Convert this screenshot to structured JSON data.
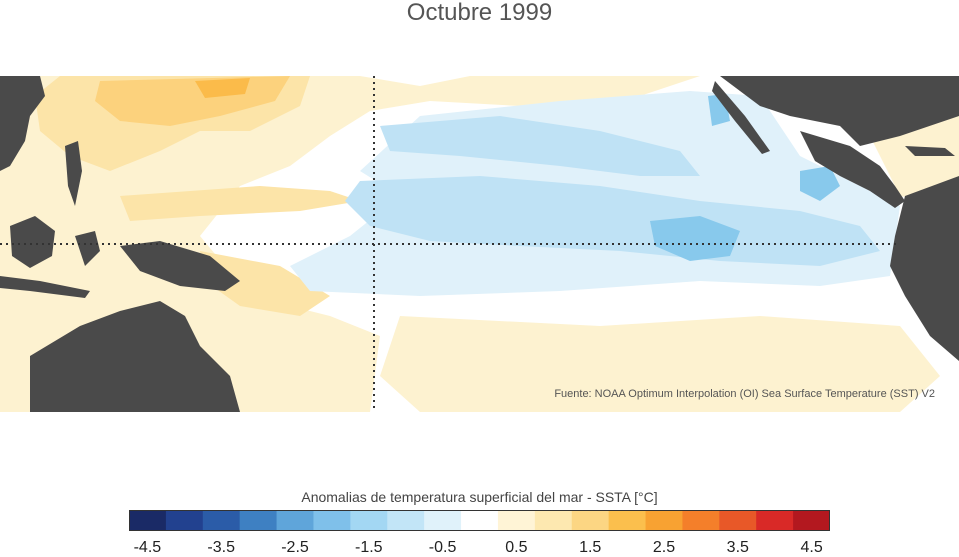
{
  "title": "Octubre 1999",
  "source": "Fuente: NOAA Optimum Interpolation (OI) Sea Surface Temperature (SST) V2",
  "colorbar": {
    "label": "Anomalias de temperatura superficial del mar - SSTA  [°C]",
    "tick_labels": [
      "-4.5",
      "-3.5",
      "-2.5",
      "-1.5",
      "-0.5",
      "0.5",
      "1.5",
      "2.5",
      "3.5",
      "4.5"
    ],
    "tick_values": [
      -4.5,
      -3.5,
      -2.5,
      -1.5,
      -0.5,
      0.5,
      1.5,
      2.5,
      3.5,
      4.5
    ],
    "range": [
      -4.5,
      4.5
    ],
    "colors": [
      "#1a2a66",
      "#22418f",
      "#2b5ca8",
      "#3e80c2",
      "#5fa5da",
      "#7fc0ea",
      "#a3d7f3",
      "#c2e5f7",
      "#e0f2fa",
      "#ffffff",
      "#fff4d6",
      "#fde8b0",
      "#fcd683",
      "#fbbf4d",
      "#f8a232",
      "#f47f2a",
      "#e85828",
      "#d92927",
      "#b3181f"
    ]
  },
  "map": {
    "colors": {
      "land": "#4a4a4a",
      "ocean": "#ffffff",
      "warm_weak": "#fdf2d0",
      "warm_light": "#fce4a8",
      "warm_medium": "#fcd27d",
      "warm_strong": "#fbbb4a",
      "cool_weak": "#e0f1fa",
      "cool_light": "#bfe2f5",
      "cool_medium": "#88c9ec"
    }
  }
}
